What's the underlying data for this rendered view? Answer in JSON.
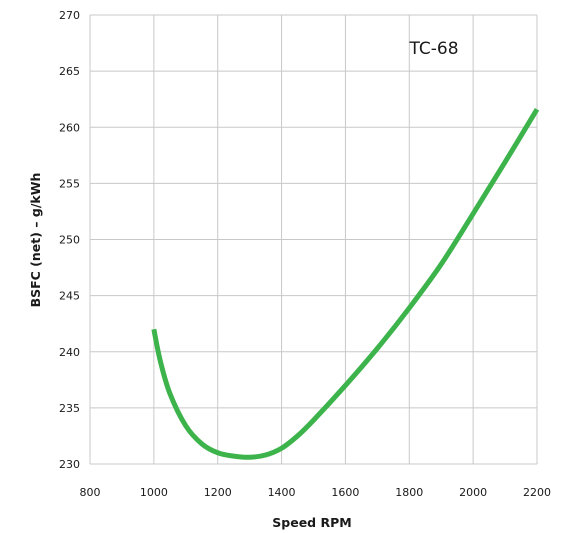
{
  "chart_data": {
    "type": "line",
    "title": "",
    "xlabel": "Speed RPM",
    "ylabel": "BSFC (net) – g/kWh",
    "xlim": [
      800,
      2200
    ],
    "ylim": [
      230,
      270
    ],
    "xticks": [
      800,
      1000,
      1200,
      1400,
      1600,
      1800,
      2000,
      2200
    ],
    "yticks": [
      230,
      235,
      240,
      245,
      250,
      255,
      260,
      265,
      270
    ],
    "xtick_labels": [
      "800",
      "1000",
      "1200",
      "1400",
      "1600",
      "1800",
      "2000",
      "2200"
    ],
    "ytick_labels": [
      "230",
      "235",
      "240",
      "245",
      "250",
      "255",
      "260",
      "265",
      "270"
    ],
    "grid": true,
    "annotation": "TC-68",
    "series": [
      {
        "name": "TC-68",
        "color": "#3cb44b",
        "x": [
          1000,
          1020,
          1050,
          1100,
          1150,
          1200,
          1250,
          1300,
          1350,
          1400,
          1450,
          1500,
          1600,
          1700,
          1800,
          1900,
          2000,
          2100,
          2200
        ],
        "y": [
          242,
          239.2,
          236.3,
          233.4,
          231.8,
          231.0,
          230.7,
          230.6,
          230.8,
          231.4,
          232.5,
          233.9,
          237.0,
          240.3,
          243.9,
          247.8,
          252.3,
          256.9,
          261.6
        ]
      }
    ]
  }
}
